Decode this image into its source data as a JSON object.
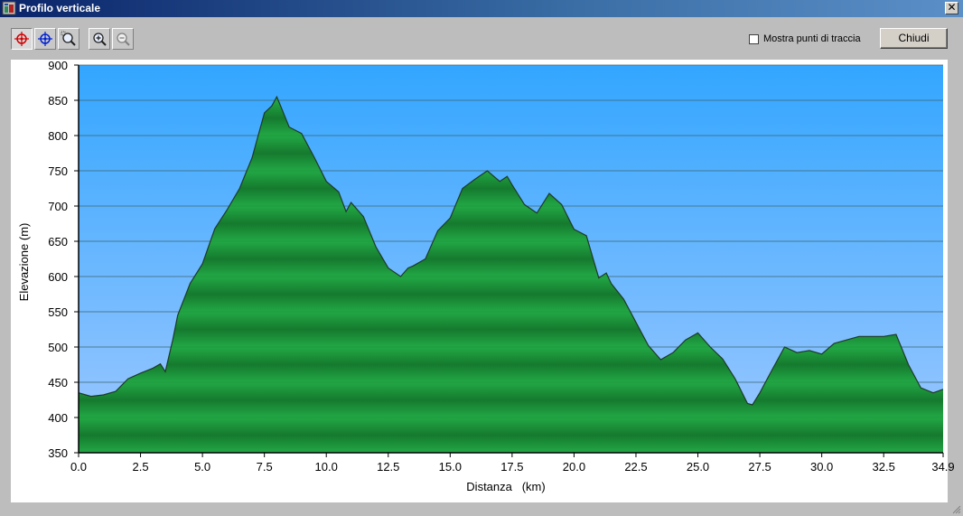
{
  "window": {
    "title": "Profilo verticale",
    "close_symbol": "✕"
  },
  "toolbar": {
    "buttons": [
      {
        "name": "crosshair-red-icon",
        "pressed": true
      },
      {
        "name": "crosshair-blue-icon",
        "pressed": false
      },
      {
        "name": "zoom-window-icon",
        "pressed": false
      },
      {
        "name": "zoom-in-icon",
        "pressed": false
      },
      {
        "name": "zoom-out-icon",
        "pressed": false
      }
    ],
    "show_points_label": "Mostra punti di traccia",
    "show_points_checked": false,
    "close_label": "Chiudi"
  },
  "colors": {
    "sky_top": "#33a6ff",
    "sky_bottom": "#9ec8ff",
    "fill_light": "#22a845",
    "fill_dark": "#157a2e",
    "outline": "#1f3a26"
  },
  "chart_data": {
    "type": "area",
    "xlabel": "Distanza   (km)",
    "ylabel": "Elevazione (m)",
    "xlim": [
      0,
      34.9
    ],
    "ylim": [
      350,
      900
    ],
    "x_ticks": [
      "0.0",
      "2.5",
      "5.0",
      "7.5",
      "10.0",
      "12.5",
      "15.0",
      "17.5",
      "20.0",
      "22.5",
      "25.0",
      "27.5",
      "30.0",
      "32.5",
      "34.9"
    ],
    "x_tick_values": [
      0,
      2.5,
      5,
      7.5,
      10,
      12.5,
      15,
      17.5,
      20,
      22.5,
      25,
      27.5,
      30,
      32.5,
      34.9
    ],
    "y_ticks": [
      "350",
      "400",
      "450",
      "500",
      "550",
      "600",
      "650",
      "700",
      "750",
      "800",
      "850",
      "900"
    ],
    "y_tick_values": [
      350,
      400,
      450,
      500,
      550,
      600,
      650,
      700,
      750,
      800,
      850,
      900
    ],
    "grid": true,
    "x": [
      0,
      0.5,
      1,
      1.5,
      2,
      2.5,
      3,
      3.3,
      3.5,
      3.8,
      4,
      4.5,
      5,
      5.5,
      6,
      6.5,
      7,
      7.5,
      7.8,
      8,
      8.2,
      8.5,
      9,
      9.5,
      10,
      10.5,
      10.8,
      11,
      11.5,
      12,
      12.5,
      13,
      13.3,
      13.5,
      14,
      14.5,
      15,
      15.5,
      16,
      16.5,
      17,
      17.3,
      17.5,
      18,
      18.5,
      19,
      19.5,
      20,
      20.5,
      21,
      21.3,
      21.5,
      22,
      22.5,
      23,
      23.5,
      24,
      24.5,
      25,
      25.5,
      26,
      26.5,
      27,
      27.2,
      27.5,
      28,
      28.5,
      29,
      29.5,
      30,
      30.5,
      31,
      31.5,
      32,
      32.5,
      33,
      33.5,
      34,
      34.5,
      34.9
    ],
    "y": [
      435,
      430,
      432,
      437,
      455,
      463,
      470,
      476,
      465,
      510,
      545,
      590,
      618,
      668,
      695,
      725,
      768,
      832,
      842,
      855,
      838,
      812,
      803,
      770,
      735,
      720,
      692,
      705,
      685,
      642,
      612,
      600,
      612,
      615,
      625,
      665,
      683,
      725,
      738,
      750,
      735,
      742,
      730,
      702,
      690,
      718,
      702,
      667,
      658,
      598,
      605,
      590,
      568,
      535,
      502,
      482,
      492,
      510,
      520,
      500,
      483,
      455,
      420,
      418,
      435,
      468,
      500,
      492,
      495,
      490,
      505,
      510,
      515,
      515,
      515,
      518,
      475,
      442,
      435,
      440
    ]
  }
}
